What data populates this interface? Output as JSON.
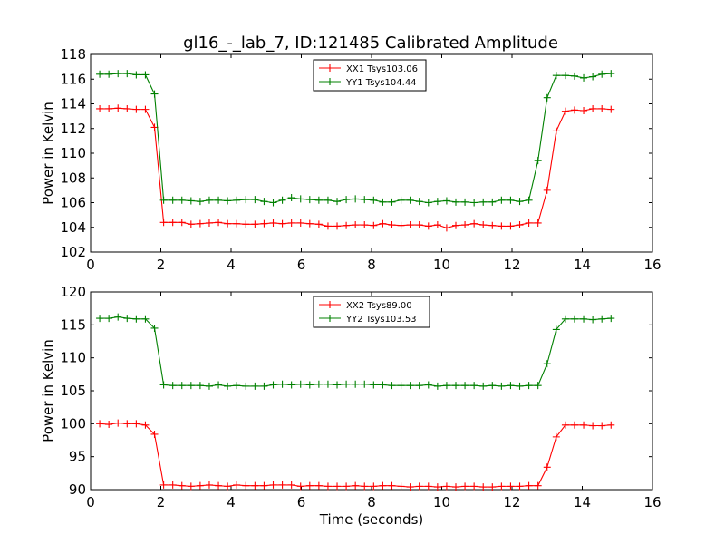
{
  "figure": {
    "title": "gl16_-_lab_7, ID:121485 Calibrated Amplitude"
  },
  "chart_data": [
    {
      "type": "line",
      "title": "gl16_-_lab_7, ID:121485 Calibrated Amplitude",
      "xlabel": "",
      "ylabel": "Power in Kelvin",
      "xlim": [
        0,
        16
      ],
      "ylim": [
        102,
        118
      ],
      "xticks": [
        "0",
        "2",
        "4",
        "6",
        "8",
        "10",
        "12",
        "14",
        "16"
      ],
      "yticks": [
        "102",
        "104",
        "106",
        "108",
        "110",
        "112",
        "114",
        "116",
        "118"
      ],
      "legend_position": "top-center",
      "grid": false,
      "x": [
        0.26,
        0.52,
        0.78,
        1.04,
        1.3,
        1.56,
        1.82,
        2.08,
        2.34,
        2.6,
        2.86,
        3.12,
        3.38,
        3.64,
        3.9,
        4.16,
        4.42,
        4.68,
        4.94,
        5.2,
        5.46,
        5.72,
        5.98,
        6.24,
        6.5,
        6.76,
        7.02,
        7.28,
        7.54,
        7.8,
        8.06,
        8.32,
        8.58,
        8.84,
        9.1,
        9.36,
        9.62,
        9.88,
        10.14,
        10.4,
        10.66,
        10.92,
        11.18,
        11.44,
        11.7,
        11.96,
        12.22,
        12.48,
        12.74,
        13.0,
        13.26,
        13.52,
        13.78,
        14.04,
        14.3,
        14.56,
        14.82
      ],
      "series": [
        {
          "name": "XX1 Tsys103.06",
          "color": "#ff0000",
          "values": [
            113.6,
            113.6,
            113.65,
            113.6,
            113.55,
            113.55,
            112.1,
            104.4,
            104.4,
            104.4,
            104.25,
            104.3,
            104.35,
            104.4,
            104.3,
            104.3,
            104.25,
            104.25,
            104.3,
            104.35,
            104.3,
            104.35,
            104.35,
            104.3,
            104.25,
            104.1,
            104.1,
            104.15,
            104.2,
            104.2,
            104.15,
            104.3,
            104.2,
            104.15,
            104.2,
            104.2,
            104.1,
            104.2,
            103.95,
            104.15,
            104.2,
            104.3,
            104.2,
            104.15,
            104.1,
            104.1,
            104.2,
            104.35,
            104.35,
            107.0,
            111.8,
            113.4,
            113.5,
            113.45,
            113.6,
            113.6,
            113.55
          ]
        },
        {
          "name": "YY1 Tsys104.44",
          "color": "#008000",
          "values": [
            116.4,
            116.4,
            116.45,
            116.45,
            116.35,
            116.35,
            114.8,
            106.2,
            106.2,
            106.2,
            106.15,
            106.1,
            106.2,
            106.2,
            106.15,
            106.2,
            106.25,
            106.25,
            106.1,
            106.0,
            106.2,
            106.4,
            106.3,
            106.25,
            106.2,
            106.2,
            106.1,
            106.25,
            106.3,
            106.25,
            106.2,
            106.05,
            106.05,
            106.2,
            106.2,
            106.1,
            106.0,
            106.1,
            106.15,
            106.05,
            106.05,
            106.0,
            106.05,
            106.05,
            106.2,
            106.2,
            106.1,
            106.2,
            109.4,
            114.5,
            116.3,
            116.3,
            116.25,
            116.1,
            116.2,
            116.4,
            116.45
          ]
        }
      ]
    },
    {
      "type": "line",
      "title": "",
      "xlabel": "Time (seconds)",
      "ylabel": "Power in Kelvin",
      "xlim": [
        0,
        16
      ],
      "ylim": [
        90,
        120
      ],
      "xticks": [
        "0",
        "2",
        "4",
        "6",
        "8",
        "10",
        "12",
        "14",
        "16"
      ],
      "yticks": [
        "90",
        "95",
        "100",
        "105",
        "110",
        "115",
        "120"
      ],
      "legend_position": "top-center",
      "grid": false,
      "x": [
        0.26,
        0.52,
        0.78,
        1.04,
        1.3,
        1.56,
        1.82,
        2.08,
        2.34,
        2.6,
        2.86,
        3.12,
        3.38,
        3.64,
        3.9,
        4.16,
        4.42,
        4.68,
        4.94,
        5.2,
        5.46,
        5.72,
        5.98,
        6.24,
        6.5,
        6.76,
        7.02,
        7.28,
        7.54,
        7.8,
        8.06,
        8.32,
        8.58,
        8.84,
        9.1,
        9.36,
        9.62,
        9.88,
        10.14,
        10.4,
        10.66,
        10.92,
        11.18,
        11.44,
        11.7,
        11.96,
        12.22,
        12.48,
        12.74,
        13.0,
        13.26,
        13.52,
        13.78,
        14.04,
        14.3,
        14.56,
        14.82
      ],
      "series": [
        {
          "name": "XX2 Tsys89.00",
          "color": "#ff0000",
          "values": [
            100.0,
            99.9,
            100.1,
            100.0,
            100.0,
            99.8,
            98.4,
            90.7,
            90.7,
            90.6,
            90.5,
            90.6,
            90.7,
            90.6,
            90.5,
            90.7,
            90.6,
            90.6,
            90.6,
            90.7,
            90.7,
            90.7,
            90.5,
            90.6,
            90.6,
            90.5,
            90.5,
            90.5,
            90.6,
            90.5,
            90.5,
            90.6,
            90.6,
            90.5,
            90.4,
            90.5,
            90.5,
            90.4,
            90.5,
            90.4,
            90.5,
            90.5,
            90.4,
            90.4,
            90.5,
            90.5,
            90.5,
            90.6,
            90.6,
            93.4,
            98.0,
            99.8,
            99.8,
            99.8,
            99.7,
            99.7,
            99.8
          ]
        },
        {
          "name": "YY2 Tsys103.53",
          "color": "#008000",
          "values": [
            116.0,
            116.0,
            116.2,
            116.0,
            115.9,
            115.9,
            114.5,
            105.9,
            105.8,
            105.8,
            105.8,
            105.8,
            105.7,
            105.9,
            105.7,
            105.8,
            105.7,
            105.7,
            105.7,
            105.9,
            106.0,
            105.9,
            106.0,
            105.9,
            106.0,
            106.0,
            105.9,
            106.0,
            106.0,
            106.0,
            105.9,
            105.9,
            105.8,
            105.8,
            105.8,
            105.8,
            105.9,
            105.7,
            105.8,
            105.8,
            105.8,
            105.8,
            105.7,
            105.8,
            105.7,
            105.8,
            105.7,
            105.8,
            105.8,
            109.1,
            114.3,
            115.9,
            115.9,
            115.9,
            115.8,
            115.9,
            116.0
          ]
        }
      ]
    }
  ]
}
